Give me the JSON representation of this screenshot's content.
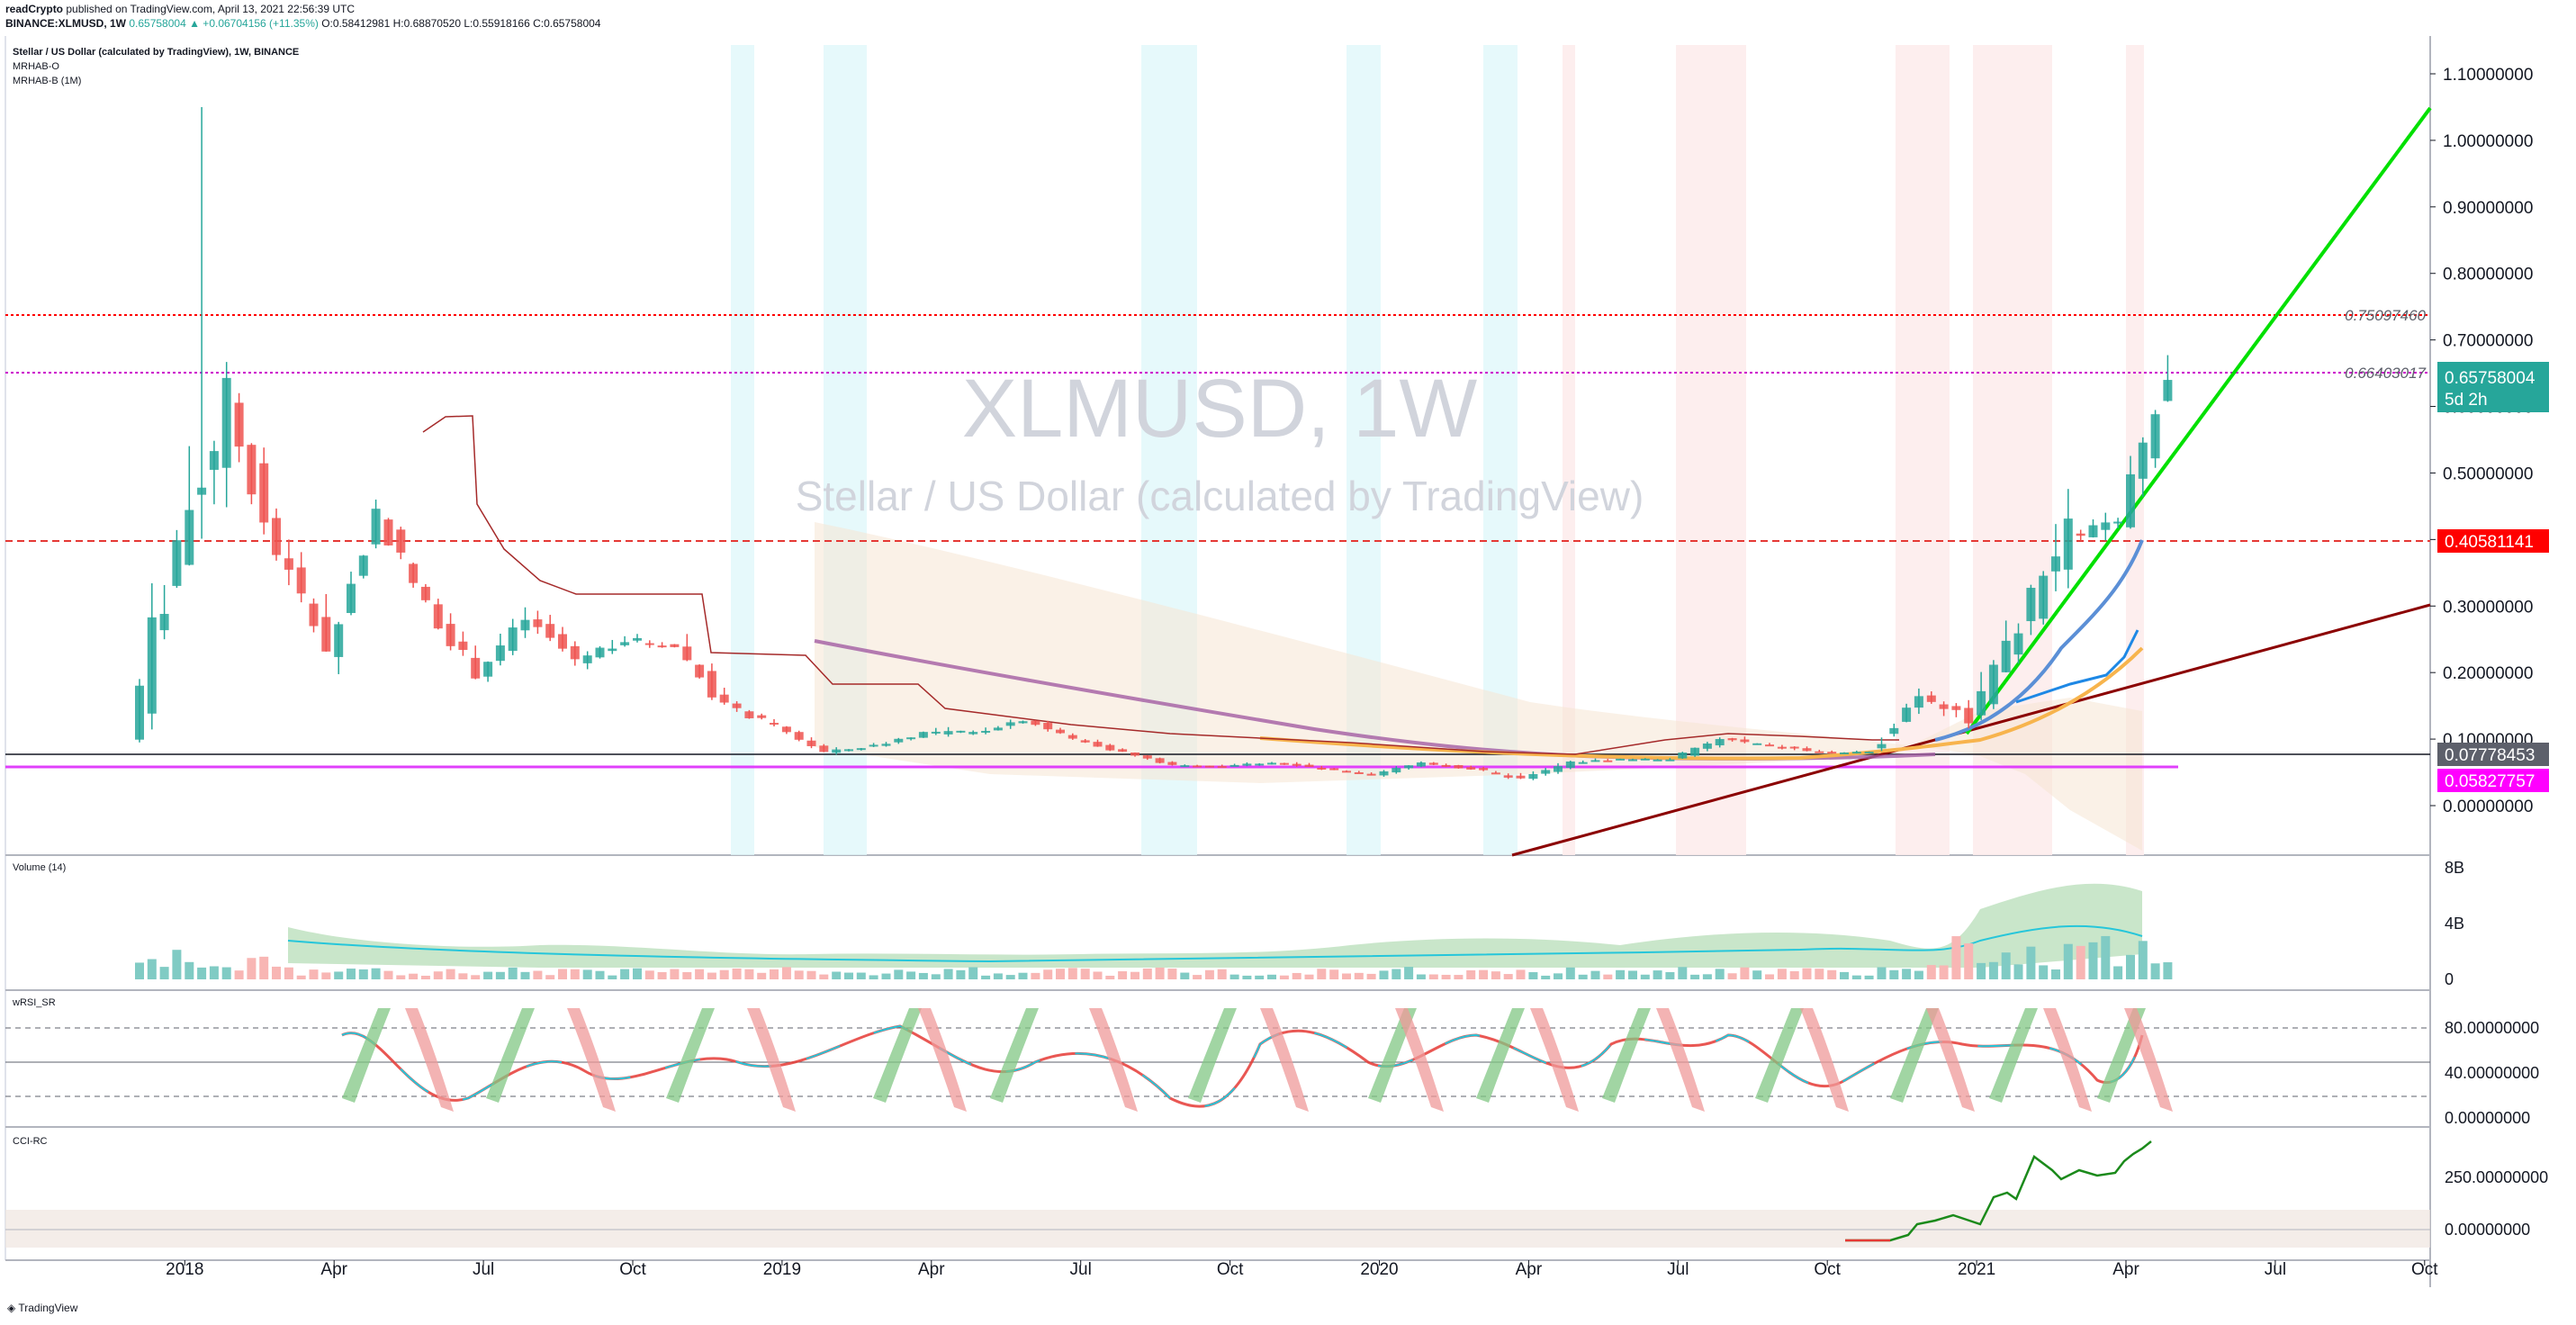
{
  "header": {
    "publisher": "readCrypto",
    "published_text": "published on TradingView.com, April 13, 2021 22:56:39 UTC",
    "symbol": "BINANCE:XLMUSD, 1W",
    "last": "0.65758004",
    "change": "▲ +0.06704156 (+11.35%)",
    "ohlc": "O:0.58412981 H:0.68870520 L:0.55918166 C:0.65758004"
  },
  "main_pane": {
    "title": "Stellar / US Dollar (calculated by TradingView), 1W, BINANCE",
    "indicators": [
      "MRHAB-O",
      "MRHAB-B (1M)"
    ],
    "watermark_symbol": "XLMUSD, 1W",
    "watermark_name": "Stellar / US Dollar (calculated by TradingView)"
  },
  "panes": {
    "volume": "Volume (14)",
    "wrsi": "wRSI_SR",
    "cci": "CCI-RC"
  },
  "price_labels": [
    {
      "text": "0.65758004",
      "sub": "5d 2h",
      "color": "#26a69a"
    },
    {
      "text": "0.40581141",
      "color": "#ff0000"
    },
    {
      "text": "0.07778453",
      "color": "#5d606b"
    },
    {
      "text": "0.05827757",
      "color": "#ff00ff"
    }
  ],
  "fib_labels": [
    "0.75097460",
    "0.66403017"
  ],
  "volume_axis": [
    "8B",
    "4B",
    "0"
  ],
  "wrsi_axis": [
    "80.00000000",
    "40.00000000",
    "0.00000000"
  ],
  "cci_axis": [
    "250.00000000",
    "0.00000000"
  ],
  "colors": {
    "up": "#26a69a",
    "down": "#ef5350",
    "trend_up": "#00e000",
    "trend_down": "#8b0000"
  },
  "chart_data": {
    "type": "candlestick",
    "title": "Stellar / US Dollar (calculated by TradingView)",
    "ylim": [
      0,
      1.1
    ],
    "y_ticks": [
      "1.10000000",
      "1.00000000",
      "0.90000000",
      "0.80000000",
      "0.70000000",
      "0.60000000",
      "0.50000000",
      "0.40000000",
      "0.30000000",
      "0.20000000",
      "0.10000000",
      "0.00000000"
    ],
    "x_ticks": [
      "2018",
      "Apr",
      "Jul",
      "Oct",
      "2019",
      "Apr",
      "Jul",
      "Oct",
      "2020",
      "Apr",
      "Jul",
      "Oct",
      "2021",
      "Apr",
      "Jul",
      "Oct"
    ],
    "ohlc_monthly_approx": [
      [
        "2017-12",
        0.1,
        0.68,
        0.1,
        0.4
      ],
      [
        "2018-01",
        0.4,
        1.05,
        0.38,
        0.6
      ],
      [
        "2018-02",
        0.6,
        0.62,
        0.26,
        0.38
      ],
      [
        "2018-03",
        0.38,
        0.4,
        0.16,
        0.24
      ],
      [
        "2018-04",
        0.22,
        0.46,
        0.2,
        0.44
      ],
      [
        "2018-05",
        0.44,
        0.46,
        0.26,
        0.3
      ],
      [
        "2018-06",
        0.3,
        0.32,
        0.18,
        0.2
      ],
      [
        "2018-07",
        0.2,
        0.32,
        0.19,
        0.28
      ],
      [
        "2018-08",
        0.28,
        0.3,
        0.19,
        0.22
      ],
      [
        "2018-09",
        0.22,
        0.28,
        0.19,
        0.25
      ],
      [
        "2018-10",
        0.25,
        0.28,
        0.21,
        0.24
      ],
      [
        "2018-11",
        0.24,
        0.27,
        0.13,
        0.15
      ],
      [
        "2018-12",
        0.15,
        0.16,
        0.1,
        0.12
      ],
      [
        "2019-01",
        0.12,
        0.12,
        0.08,
        0.08
      ],
      [
        "2019-02",
        0.08,
        0.1,
        0.07,
        0.09
      ],
      [
        "2019-03",
        0.09,
        0.12,
        0.08,
        0.11
      ],
      [
        "2019-04",
        0.11,
        0.14,
        0.1,
        0.11
      ],
      [
        "2019-05",
        0.11,
        0.15,
        0.1,
        0.13
      ],
      [
        "2019-06",
        0.13,
        0.14,
        0.1,
        0.1
      ],
      [
        "2019-07",
        0.1,
        0.11,
        0.08,
        0.08
      ],
      [
        "2019-08",
        0.08,
        0.08,
        0.06,
        0.06
      ],
      [
        "2019-09",
        0.06,
        0.07,
        0.055,
        0.06
      ],
      [
        "2019-10",
        0.06,
        0.07,
        0.055,
        0.065
      ],
      [
        "2019-11",
        0.065,
        0.075,
        0.05,
        0.055
      ],
      [
        "2019-12",
        0.055,
        0.06,
        0.045,
        0.046
      ],
      [
        "2020-01",
        0.046,
        0.07,
        0.045,
        0.065
      ],
      [
        "2020-02",
        0.065,
        0.08,
        0.05,
        0.055
      ],
      [
        "2020-03",
        0.055,
        0.06,
        0.03,
        0.04
      ],
      [
        "2020-04",
        0.04,
        0.07,
        0.04,
        0.065
      ],
      [
        "2020-05",
        0.065,
        0.08,
        0.06,
        0.07
      ],
      [
        "2020-06",
        0.07,
        0.08,
        0.065,
        0.07
      ],
      [
        "2020-07",
        0.07,
        0.11,
        0.07,
        0.1
      ],
      [
        "2020-08",
        0.1,
        0.12,
        0.09,
        0.09
      ],
      [
        "2020-09",
        0.09,
        0.1,
        0.07,
        0.08
      ],
      [
        "2020-10",
        0.08,
        0.09,
        0.075,
        0.08
      ],
      [
        "2020-11",
        0.08,
        0.22,
        0.08,
        0.17
      ],
      [
        "2020-12",
        0.17,
        0.22,
        0.11,
        0.13
      ],
      [
        "2021-01",
        0.13,
        0.33,
        0.12,
        0.27
      ],
      [
        "2021-02",
        0.27,
        0.61,
        0.27,
        0.41
      ],
      [
        "2021-03",
        0.41,
        0.52,
        0.35,
        0.42
      ],
      [
        "2021-04",
        0.42,
        0.69,
        0.41,
        0.66
      ]
    ],
    "horizontal_levels": [
      0.7509746,
      0.66403017,
      0.40581141,
      0.07778453,
      0.05827757
    ]
  }
}
